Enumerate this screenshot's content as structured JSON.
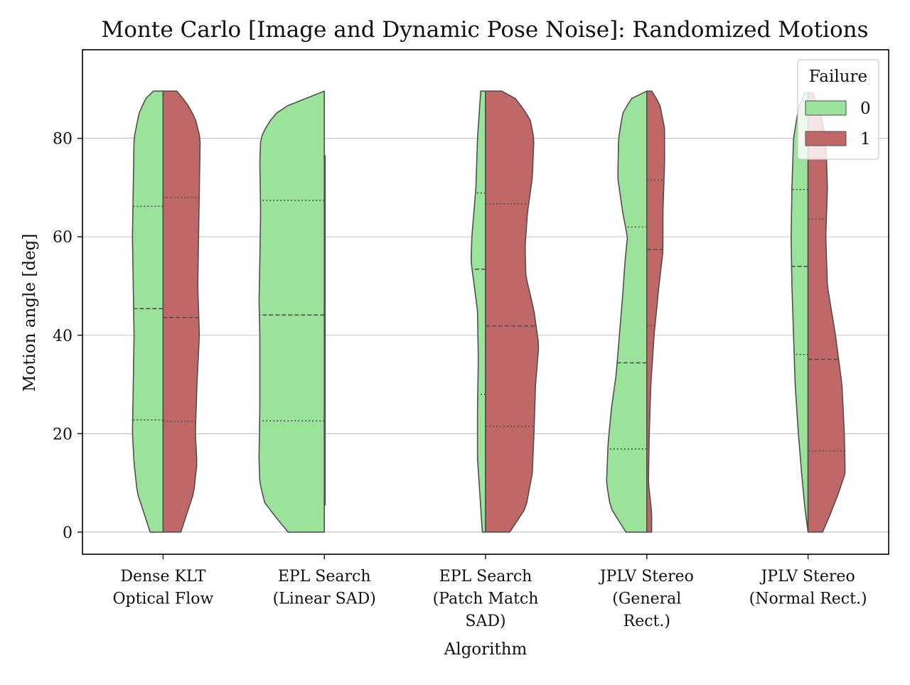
{
  "chart_data": {
    "type": "violin",
    "title": "Monte Carlo [Image and Dynamic Pose Noise]: Randomized Motions",
    "xlabel": "Algorithm",
    "ylabel": "Motion angle [deg]",
    "ylim": [
      -4.5,
      98
    ],
    "yticks": [
      0,
      20,
      40,
      60,
      80
    ],
    "grid": "horizontal",
    "legend": {
      "title": "Failure",
      "position": "top-right",
      "entries": [
        {
          "label": "0",
          "color": "#9be39b"
        },
        {
          "label": "1",
          "color": "#c06868"
        }
      ]
    },
    "colors": {
      "failure_0": "#9be39b",
      "failure_1": "#c06868",
      "outline": "#4f4f4f"
    },
    "categories": [
      [
        "Dense KLT",
        "Optical Flow"
      ],
      [
        "EPL Search",
        "(Linear SAD)"
      ],
      [
        "EPL Search",
        "(Patch Match",
        "SAD)"
      ],
      [
        "JPLV Stereo",
        "(General",
        "Rect.)"
      ],
      [
        "JPLV Stereo",
        "(Normal Rect.)"
      ]
    ],
    "series": [
      {
        "name": "0",
        "violins": [
          {
            "range": [
              0,
              89.6
            ],
            "quartiles": [
              22.8,
              45.4,
              66.2
            ],
            "profile": [
              [
                0,
                0.16
              ],
              [
                3,
                0.22
              ],
              [
                8,
                0.32
              ],
              [
                14,
                0.36
              ],
              [
                20,
                0.38
              ],
              [
                30,
                0.37
              ],
              [
                40,
                0.36
              ],
              [
                50,
                0.37
              ],
              [
                60,
                0.38
              ],
              [
                70,
                0.37
              ],
              [
                80,
                0.36
              ],
              [
                85,
                0.3
              ],
              [
                88,
                0.22
              ],
              [
                89.6,
                0.12
              ]
            ]
          },
          {
            "range": [
              0,
              89.6
            ],
            "quartiles": [
              22.6,
              44.1,
              67.4
            ],
            "profile": [
              [
                0,
                0.45
              ],
              [
                3,
                0.6
              ],
              [
                6,
                0.74
              ],
              [
                10,
                0.8
              ],
              [
                15,
                0.81
              ],
              [
                25,
                0.8
              ],
              [
                35,
                0.8
              ],
              [
                40,
                0.8
              ],
              [
                47,
                0.81
              ],
              [
                55,
                0.8
              ],
              [
                65,
                0.79
              ],
              [
                75,
                0.8
              ],
              [
                80,
                0.79
              ],
              [
                83,
                0.7
              ],
              [
                86,
                0.55
              ],
              [
                89.6,
                0.0
              ]
            ]
          },
          {
            "range": [
              0,
              89.6
            ],
            "quartiles": [
              28.0,
              53.4,
              68.9
            ],
            "profile": [
              [
                0,
                0.04
              ],
              [
                5,
                0.06
              ],
              [
                15,
                0.1
              ],
              [
                25,
                0.1
              ],
              [
                35,
                0.09
              ],
              [
                45,
                0.1
              ],
              [
                55,
                0.18
              ],
              [
                60,
                0.17
              ],
              [
                70,
                0.12
              ],
              [
                80,
                0.1
              ],
              [
                89.6,
                0.06
              ]
            ]
          },
          {
            "range": [
              0,
              89.6
            ],
            "quartiles": [
              16.9,
              34.4,
              62.0
            ],
            "profile": [
              [
                0,
                0.26
              ],
              [
                5,
                0.45
              ],
              [
                10,
                0.5
              ],
              [
                18,
                0.48
              ],
              [
                25,
                0.44
              ],
              [
                32,
                0.38
              ],
              [
                40,
                0.34
              ],
              [
                48,
                0.3
              ],
              [
                55,
                0.27
              ],
              [
                60,
                0.24
              ],
              [
                65,
                0.3
              ],
              [
                72,
                0.36
              ],
              [
                80,
                0.35
              ],
              [
                85,
                0.3
              ],
              [
                88,
                0.2
              ],
              [
                89.6,
                0.0
              ]
            ]
          },
          {
            "range": [
              0,
              89.2
            ],
            "quartiles": [
              36.1,
              54.0,
              69.6
            ],
            "profile": [
              [
                0,
                0.0
              ],
              [
                5,
                0.04
              ],
              [
                12,
                0.08
              ],
              [
                20,
                0.12
              ],
              [
                30,
                0.16
              ],
              [
                40,
                0.18
              ],
              [
                50,
                0.2
              ],
              [
                60,
                0.21
              ],
              [
                70,
                0.2
              ],
              [
                80,
                0.18
              ],
              [
                86,
                0.12
              ],
              [
                89.2,
                0.04
              ]
            ]
          }
        ]
      },
      {
        "name": "1",
        "violins": [
          {
            "range": [
              0,
              89.6
            ],
            "quartiles": [
              22.5,
              43.6,
              68.0
            ],
            "profile": [
              [
                0,
                0.22
              ],
              [
                3,
                0.28
              ],
              [
                8,
                0.38
              ],
              [
                14,
                0.42
              ],
              [
                20,
                0.4
              ],
              [
                30,
                0.42
              ],
              [
                40,
                0.45
              ],
              [
                50,
                0.43
              ],
              [
                60,
                0.44
              ],
              [
                70,
                0.45
              ],
              [
                80,
                0.46
              ],
              [
                84,
                0.4
              ],
              [
                87,
                0.3
              ],
              [
                89.6,
                0.17
              ]
            ]
          },
          {
            "range": [
              5.5,
              76.5
            ],
            "quartiles": [],
            "profile": [
              [
                5.5,
                0.01
              ],
              [
                40,
                0.01
              ],
              [
                76.5,
                0.01
              ]
            ]
          },
          {
            "range": [
              0,
              89.6
            ],
            "quartiles": [
              21.5,
              41.9,
              66.7
            ],
            "profile": [
              [
                0,
                0.3
              ],
              [
                5,
                0.5
              ],
              [
                12,
                0.58
              ],
              [
                20,
                0.6
              ],
              [
                30,
                0.62
              ],
              [
                38,
                0.66
              ],
              [
                45,
                0.6
              ],
              [
                52,
                0.5
              ],
              [
                58,
                0.49
              ],
              [
                65,
                0.52
              ],
              [
                72,
                0.58
              ],
              [
                80,
                0.6
              ],
              [
                84,
                0.55
              ],
              [
                88,
                0.38
              ],
              [
                89.6,
                0.2
              ]
            ]
          },
          {
            "range": [
              0,
              89.6
            ],
            "quartiles": [
              42.0,
              57.4,
              71.5
            ],
            "profile": [
              [
                0,
                0.06
              ],
              [
                4,
                0.06
              ],
              [
                10,
                0.02
              ],
              [
                20,
                0.03
              ],
              [
                30,
                0.05
              ],
              [
                40,
                0.09
              ],
              [
                50,
                0.15
              ],
              [
                57,
                0.2
              ],
              [
                65,
                0.2
              ],
              [
                75,
                0.22
              ],
              [
                82,
                0.22
              ],
              [
                87,
                0.16
              ],
              [
                89.6,
                0.06
              ]
            ]
          },
          {
            "range": [
              0,
              89.2
            ],
            "quartiles": [
              16.5,
              35.1,
              63.6
            ],
            "profile": [
              [
                0,
                0.18
              ],
              [
                3,
                0.26
              ],
              [
                8,
                0.38
              ],
              [
                12,
                0.46
              ],
              [
                20,
                0.45
              ],
              [
                30,
                0.42
              ],
              [
                40,
                0.34
              ],
              [
                50,
                0.24
              ],
              [
                60,
                0.22
              ],
              [
                70,
                0.24
              ],
              [
                80,
                0.22
              ],
              [
                86,
                0.14
              ],
              [
                89.2,
                0.06
              ]
            ]
          }
        ]
      }
    ]
  }
}
